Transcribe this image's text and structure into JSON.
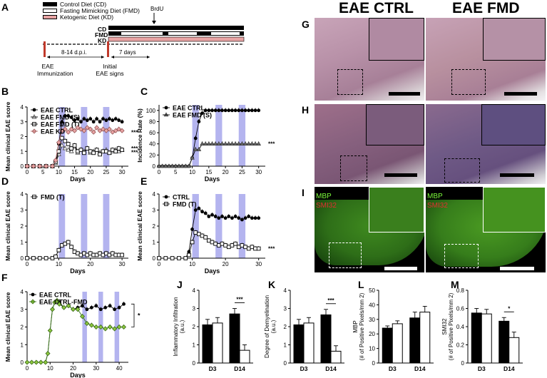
{
  "panel_letters": {
    "a": "A",
    "b": "B",
    "c": "C",
    "d": "D",
    "e": "E",
    "f": "F",
    "g": "G",
    "h": "H",
    "i": "I",
    "j": "J",
    "k": "K",
    "l": "L",
    "m": "M"
  },
  "schema": {
    "legend": [
      "Control Diet (CD)",
      "Fasting Mimicking Diet (FMD)",
      "Ketogenic Diet (KD)"
    ],
    "rows": [
      "CD",
      "FMD",
      "KD"
    ],
    "brdu": "BrdU",
    "period": "8-14 d.p.i.",
    "days7": "7 days",
    "event1": [
      "EAE",
      "Immunization"
    ],
    "event2": [
      "Initial",
      "EAE signs"
    ],
    "colors": {
      "cd": "#000000",
      "fmd": "#ffffff",
      "kd": "#e8a4a4",
      "cycle": "#9b9bea"
    }
  },
  "histo": {
    "col1": "EAE CTRL",
    "col2": "EAE FMD",
    "mbp": "MBP",
    "smi32": "SMI32"
  },
  "chart_data": [
    {
      "id": "B",
      "type": "line",
      "ylabel": "Mean clinical EAE score",
      "xlabel": "Days",
      "xlim": [
        0,
        32
      ],
      "ylim": [
        0,
        4
      ],
      "xticks": [
        0,
        5,
        10,
        15,
        20,
        25,
        30
      ],
      "yticks": [
        0,
        1,
        2,
        3,
        4
      ],
      "fmd_cycles": [
        [
          10,
          12
        ],
        [
          17,
          19
        ],
        [
          24,
          26
        ]
      ],
      "series": [
        {
          "name": "EAE CTRL",
          "marker": "circle-filled",
          "x": [
            0,
            2,
            4,
            6,
            8,
            9,
            10,
            11,
            12,
            13,
            14,
            15,
            16,
            17,
            18,
            19,
            20,
            21,
            22,
            23,
            24,
            25,
            26,
            27,
            28,
            29,
            30
          ],
          "y": [
            0,
            0,
            0,
            0,
            0,
            0.3,
            1.5,
            3,
            3.4,
            3.4,
            3.3,
            3.1,
            3.2,
            3.0,
            3.2,
            3.1,
            3.2,
            3.0,
            3.2,
            3.0,
            3.2,
            3.1,
            3.2,
            3.1,
            3.2,
            3.1,
            3.0
          ]
        },
        {
          "name": "EAE FMD (S)",
          "marker": "triangle-open",
          "x": [
            0,
            2,
            4,
            6,
            8,
            9,
            10,
            11,
            12,
            13,
            14,
            15,
            16,
            17,
            18,
            19,
            20,
            21,
            22,
            23,
            24,
            25,
            26,
            27,
            28,
            29,
            30
          ],
          "y": [
            0,
            0,
            0,
            0,
            0,
            0.2,
            0.8,
            1.4,
            1.2,
            1.1,
            1.0,
            1.3,
            0.9,
            1.1,
            1.0,
            1.2,
            0.9,
            1.0,
            1.1,
            0.9,
            1.0,
            1.1,
            0.9,
            1.0,
            1.1,
            1.0,
            1.1
          ]
        },
        {
          "name": "EAE FMD (T)",
          "marker": "square-open",
          "x": [
            0,
            2,
            4,
            6,
            8,
            9,
            10,
            11,
            12,
            13,
            14,
            15,
            16,
            17,
            18,
            19,
            20,
            21,
            22,
            23,
            24,
            25,
            26,
            27,
            28,
            29,
            30
          ],
          "y": [
            0,
            0,
            0,
            0,
            0,
            0.3,
            1.0,
            1.9,
            1.7,
            1.5,
            1.2,
            1.4,
            1.0,
            1.1,
            0.9,
            1.2,
            1.0,
            0.9,
            1.1,
            0.8,
            1.0,
            1.0,
            0.9,
            1.1,
            1.0,
            1.2,
            1.1
          ]
        },
        {
          "name": "EAE KD",
          "marker": "diamond-pink",
          "x": [
            0,
            2,
            4,
            6,
            8,
            9,
            10,
            11,
            12,
            13,
            14,
            15,
            16,
            17,
            18,
            19,
            20,
            21,
            22,
            23,
            24,
            25,
            26,
            27,
            28,
            29,
            30
          ],
          "y": [
            0,
            0,
            0,
            0,
            0,
            0.4,
            1.6,
            2.4,
            2.5,
            2.3,
            2.5,
            2.4,
            2.6,
            2.5,
            2.4,
            2.6,
            2.5,
            2.3,
            2.6,
            2.4,
            2.5,
            2.4,
            2.5,
            2.3,
            2.4,
            2.5,
            2.4
          ]
        }
      ],
      "annotations": [
        "***",
        "***",
        "***"
      ]
    },
    {
      "id": "C",
      "type": "line",
      "ylabel": "Incidence Rate (%)",
      "xlabel": "Days",
      "xlim": [
        0,
        32
      ],
      "ylim": [
        0,
        110
      ],
      "xticks": [
        0,
        5,
        10,
        15,
        20,
        25,
        30
      ],
      "yticks": [
        0,
        20,
        40,
        60,
        80,
        100
      ],
      "fmd_cycles": [
        [
          10,
          12
        ],
        [
          17,
          19
        ],
        [
          24,
          26
        ]
      ],
      "series": [
        {
          "name": "EAE CTRL",
          "marker": "circle-filled",
          "x": [
            0,
            1,
            2,
            3,
            4,
            5,
            6,
            7,
            8,
            9,
            10,
            11,
            12,
            13,
            14,
            15,
            16,
            17,
            18,
            19,
            20,
            21,
            22,
            23,
            24,
            25,
            26,
            27,
            28,
            29,
            30
          ],
          "y": [
            0,
            0,
            0,
            0,
            0,
            0,
            0,
            0,
            0,
            0,
            15,
            50,
            80,
            95,
            100,
            100,
            100,
            100,
            100,
            100,
            100,
            100,
            100,
            100,
            100,
            100,
            100,
            100,
            100,
            100,
            100
          ]
        },
        {
          "name": "EAE FMD (S)",
          "marker": "triangle-filled",
          "x": [
            0,
            1,
            2,
            3,
            4,
            5,
            6,
            7,
            8,
            9,
            10,
            11,
            12,
            13,
            14,
            15,
            16,
            17,
            18,
            19,
            20,
            21,
            22,
            23,
            24,
            25,
            26,
            27,
            28,
            29,
            30
          ],
          "y": [
            0,
            0,
            0,
            0,
            0,
            0,
            0,
            0,
            0,
            0,
            15,
            30,
            30,
            40,
            40,
            40,
            40,
            40,
            40,
            40,
            40,
            40,
            40,
            40,
            40,
            40,
            40,
            40,
            40,
            40,
            40
          ]
        }
      ],
      "annotations": [
        "***"
      ]
    },
    {
      "id": "D",
      "type": "line",
      "ylabel": "Mean clinical EAE score",
      "xlabel": "Days",
      "xlim": [
        0,
        32
      ],
      "ylim": [
        0,
        4
      ],
      "xticks": [
        0,
        10,
        20,
        30
      ],
      "yticks": [
        0,
        1,
        2,
        3,
        4
      ],
      "fmd_cycles": [
        [
          10,
          12
        ],
        [
          17,
          19
        ],
        [
          24,
          26
        ]
      ],
      "series": [
        {
          "name": "FMD (T)",
          "marker": "square-open",
          "x": [
            0,
            2,
            4,
            6,
            8,
            9,
            10,
            11,
            12,
            13,
            14,
            15,
            16,
            17,
            18,
            19,
            20,
            21,
            22,
            23,
            24,
            25,
            26,
            27,
            28,
            29,
            30
          ],
          "y": [
            0,
            0,
            0,
            0,
            0,
            0.1,
            0.5,
            0.8,
            0.9,
            1.0,
            0.7,
            0.4,
            0.3,
            0.2,
            0.3,
            0.2,
            0.3,
            0.2,
            0.2,
            0.3,
            0.2,
            0.3,
            0.2,
            0.3,
            0.2,
            0.2,
            0.2
          ]
        }
      ]
    },
    {
      "id": "E",
      "type": "line",
      "ylabel": "Mean clinical EAE score",
      "xlabel": "Days",
      "xlim": [
        0,
        32
      ],
      "ylim": [
        0,
        4
      ],
      "xticks": [
        0,
        10,
        20,
        30
      ],
      "yticks": [
        0,
        1,
        2,
        3,
        4
      ],
      "fmd_cycles": [
        [
          10,
          12
        ],
        [
          17,
          19
        ],
        [
          24,
          26
        ]
      ],
      "series": [
        {
          "name": "CTRL",
          "marker": "circle-filled",
          "x": [
            0,
            2,
            4,
            6,
            8,
            9,
            10,
            11,
            12,
            13,
            14,
            15,
            16,
            17,
            18,
            19,
            20,
            21,
            22,
            23,
            24,
            25,
            26,
            27,
            28,
            29,
            30
          ],
          "y": [
            0,
            0,
            0,
            0,
            0,
            0.4,
            1.8,
            3.0,
            3.1,
            2.9,
            2.8,
            2.6,
            2.7,
            2.6,
            2.5,
            2.6,
            2.5,
            2.6,
            2.5,
            2.6,
            2.5,
            2.4,
            2.5,
            2.6,
            2.5,
            2.5,
            2.5
          ]
        },
        {
          "name": "FMD (T)",
          "marker": "square-open",
          "x": [
            0,
            2,
            4,
            6,
            8,
            9,
            10,
            11,
            12,
            13,
            14,
            15,
            16,
            17,
            18,
            19,
            20,
            21,
            22,
            23,
            24,
            25,
            26,
            27,
            28,
            29,
            30
          ],
          "y": [
            0,
            0,
            0,
            0,
            0,
            0.2,
            1.0,
            1.6,
            1.5,
            1.4,
            1.3,
            1.1,
            1.0,
            0.9,
            0.8,
            0.9,
            0.8,
            0.7,
            0.8,
            0.9,
            0.7,
            0.8,
            0.7,
            0.6,
            0.7,
            0.6,
            0.6
          ]
        }
      ],
      "annotations": [
        "***"
      ]
    },
    {
      "id": "F",
      "type": "line",
      "ylabel": "Mean clinical EAE score",
      "xlabel": "Days",
      "xlim": [
        0,
        44
      ],
      "ylim": [
        0,
        4
      ],
      "xticks": [
        0,
        10,
        20,
        30,
        40
      ],
      "yticks": [
        0,
        1,
        2,
        3,
        4
      ],
      "fmd_cycles": [
        [
          24,
          26
        ],
        [
          31,
          33
        ],
        [
          38,
          40
        ]
      ],
      "series": [
        {
          "name": "EAE CTRL",
          "marker": "circle-filled",
          "x": [
            0,
            2,
            4,
            6,
            8,
            9,
            10,
            11,
            12,
            13,
            14,
            16,
            18,
            20,
            22,
            24,
            26,
            28,
            30,
            32,
            34,
            36,
            38,
            40,
            42
          ],
          "y": [
            0,
            0,
            0,
            0,
            0,
            0.5,
            1.8,
            3.0,
            3.4,
            3.5,
            3.4,
            3.1,
            3.2,
            3.0,
            3.1,
            3.2,
            3.0,
            3.1,
            3.2,
            3.0,
            3.1,
            3.2,
            3.0,
            3.1,
            3.3
          ]
        },
        {
          "name": "EAE CTRL-FMD",
          "marker": "diamond-green",
          "x": [
            0,
            2,
            4,
            6,
            8,
            9,
            10,
            11,
            12,
            13,
            14,
            16,
            18,
            20,
            22,
            24,
            26,
            28,
            30,
            32,
            34,
            36,
            38,
            40,
            42
          ],
          "y": [
            0,
            0,
            0,
            0,
            0,
            0.5,
            1.8,
            3.0,
            3.4,
            3.5,
            3.3,
            3.1,
            3.2,
            3.0,
            3.0,
            2.6,
            2.2,
            2.1,
            2.0,
            2.0,
            1.9,
            2.0,
            1.9,
            2.0,
            2.0
          ]
        }
      ],
      "annotations": [
        "*"
      ]
    },
    {
      "id": "J",
      "type": "bar",
      "ylabel": "Inflammatory Infiltration (a.u.)",
      "categories": [
        "D3",
        "D14"
      ],
      "ylim": [
        0,
        4
      ],
      "yticks": [
        0,
        1,
        2,
        3,
        4
      ],
      "series": [
        {
          "fill": "black",
          "values": [
            2.1,
            2.7
          ],
          "err": [
            0.3,
            0.3
          ]
        },
        {
          "fill": "white",
          "values": [
            2.2,
            0.7
          ],
          "err": [
            0.3,
            0.3
          ]
        }
      ],
      "annotations": [
        "***"
      ]
    },
    {
      "id": "K",
      "type": "bar",
      "ylabel": "Degree of Demyelination (a.u.)",
      "categories": [
        "D3",
        "D14"
      ],
      "ylim": [
        0,
        4
      ],
      "yticks": [
        0,
        1,
        2,
        3,
        4
      ],
      "series": [
        {
          "fill": "black",
          "values": [
            2.1,
            2.65
          ],
          "err": [
            0.3,
            0.3
          ]
        },
        {
          "fill": "white",
          "values": [
            2.2,
            0.65
          ],
          "err": [
            0.3,
            0.3
          ]
        }
      ],
      "annotations": [
        "***"
      ]
    },
    {
      "id": "L",
      "type": "bar",
      "ylabel": "MBP (# of Positive Pixels/mm 2)",
      "categories": [
        "D3",
        "D14"
      ],
      "ylim": [
        0,
        50
      ],
      "yticks": [
        0,
        10,
        20,
        30,
        40,
        50
      ],
      "series": [
        {
          "fill": "black",
          "values": [
            24,
            31
          ],
          "err": [
            1.5,
            4
          ]
        },
        {
          "fill": "white",
          "values": [
            27,
            35
          ],
          "err": [
            2,
            4
          ]
        }
      ]
    },
    {
      "id": "M",
      "type": "bar",
      "ylabel": "SMI32 (# of Positive Pixels/mm 2)",
      "categories": [
        "D3",
        "D14"
      ],
      "ylim": [
        0,
        0.8
      ],
      "yticks": [
        0.0,
        0.2,
        0.4,
        0.6,
        0.8
      ],
      "series": [
        {
          "fill": "black",
          "values": [
            0.55,
            0.46
          ],
          "err": [
            0.05,
            0.04
          ]
        },
        {
          "fill": "white",
          "values": [
            0.54,
            0.28
          ],
          "err": [
            0.05,
            0.06
          ]
        }
      ],
      "annotations": [
        "*"
      ]
    }
  ]
}
